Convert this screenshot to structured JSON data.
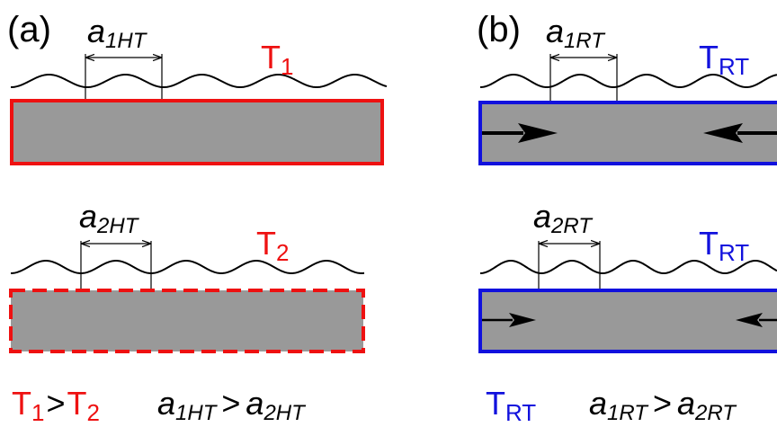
{
  "colors": {
    "red": "#ee1111",
    "blue": "#1111dd",
    "bar_fill": "#999999",
    "ink": "#000000"
  },
  "panel_a": {
    "label": "(a)",
    "top": {
      "spacing": {
        "sym": "a",
        "sub": "1HT"
      },
      "temp": {
        "sym": "T",
        "sub": "1"
      },
      "border": "solid"
    },
    "bottom": {
      "spacing": {
        "sym": "a",
        "sub": "2HT"
      },
      "temp": {
        "sym": "T",
        "sub": "2"
      },
      "border": "dashed"
    },
    "caption": {
      "t1": {
        "sym": "T",
        "sub": "1"
      },
      "gt": ">",
      "t2": {
        "sym": "T",
        "sub": "2"
      },
      "a1": {
        "sym": "a",
        "sub": "1HT"
      },
      "gt2": ">",
      "a2": {
        "sym": "a",
        "sub": "2HT"
      }
    }
  },
  "panel_b": {
    "label": "(b)",
    "top": {
      "spacing": {
        "sym": "a",
        "sub": "1RT"
      },
      "temp": {
        "sym": "T",
        "sub": "RT"
      },
      "arrows": "large"
    },
    "bottom": {
      "spacing": {
        "sym": "a",
        "sub": "2RT"
      },
      "temp": {
        "sym": "T",
        "sub": "RT"
      },
      "arrows": "small"
    },
    "caption": {
      "t": {
        "sym": "T",
        "sub": "RT"
      },
      "a1": {
        "sym": "a",
        "sub": "1RT"
      },
      "gt": ">",
      "a2": {
        "sym": "a",
        "sub": "2RT"
      }
    }
  }
}
